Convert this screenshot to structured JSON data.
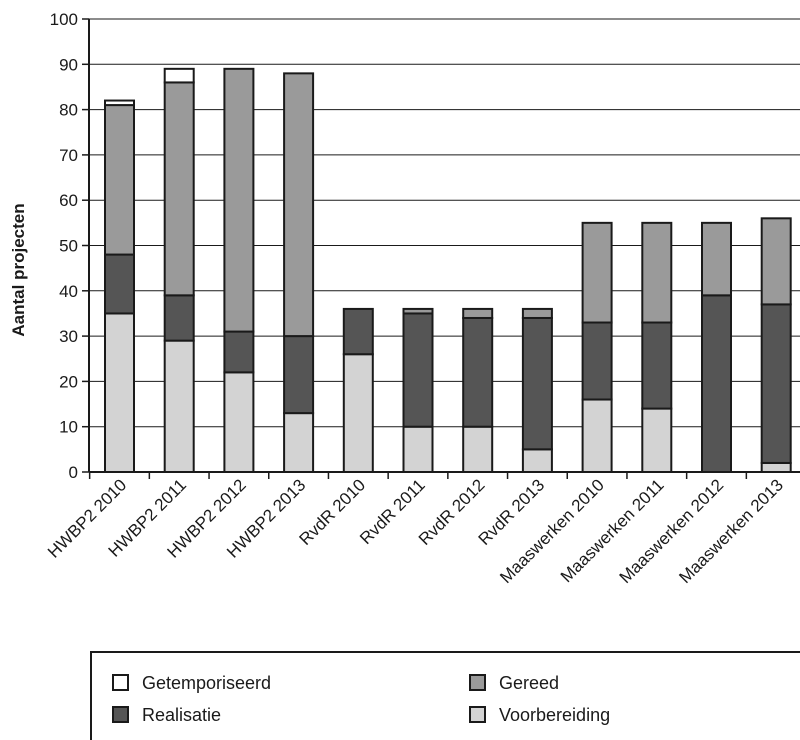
{
  "chart_data": {
    "type": "bar",
    "stacked": true,
    "categories": [
      "HWBP2  2010",
      "HWBP2  2011",
      "HWBP2 2012",
      "HWBP2 2013",
      "RvdR  2010",
      "RvdR  2011",
      "RvdR 2012",
      "RvdR 2013",
      "Maaswerken 2010",
      "Maaswerken 2011",
      "Maaswerken 2012",
      "Maaswerken 2013"
    ],
    "series": [
      {
        "name": "Voorbereiding",
        "color": "#d3d3d3",
        "values": [
          35,
          29,
          22,
          13,
          26,
          10,
          10,
          5,
          16,
          14,
          0,
          2
        ]
      },
      {
        "name": "Realisatie",
        "color": "#555555",
        "values": [
          13,
          10,
          9,
          17,
          10,
          25,
          24,
          29,
          17,
          19,
          39,
          35
        ]
      },
      {
        "name": "Gereed",
        "color": "#9a9a9a",
        "values": [
          33,
          47,
          58,
          58,
          0,
          1,
          2,
          2,
          22,
          22,
          16,
          19
        ]
      },
      {
        "name": "Getemporiseerd",
        "color": "#ffffff",
        "values": [
          1,
          3,
          0,
          0,
          0,
          0,
          0,
          0,
          0,
          0,
          0,
          0
        ]
      }
    ],
    "ylabel": "Aantal projecten",
    "xlabel": "",
    "ylim": [
      0,
      100
    ],
    "yticks": [
      0,
      10,
      20,
      30,
      40,
      50,
      60,
      70,
      80,
      90,
      100
    ],
    "grid": true,
    "legend_position": "bottom",
    "legend_order": [
      "Getemporiseerd",
      "Gereed",
      "Realisatie",
      "Voorbereiding"
    ]
  }
}
